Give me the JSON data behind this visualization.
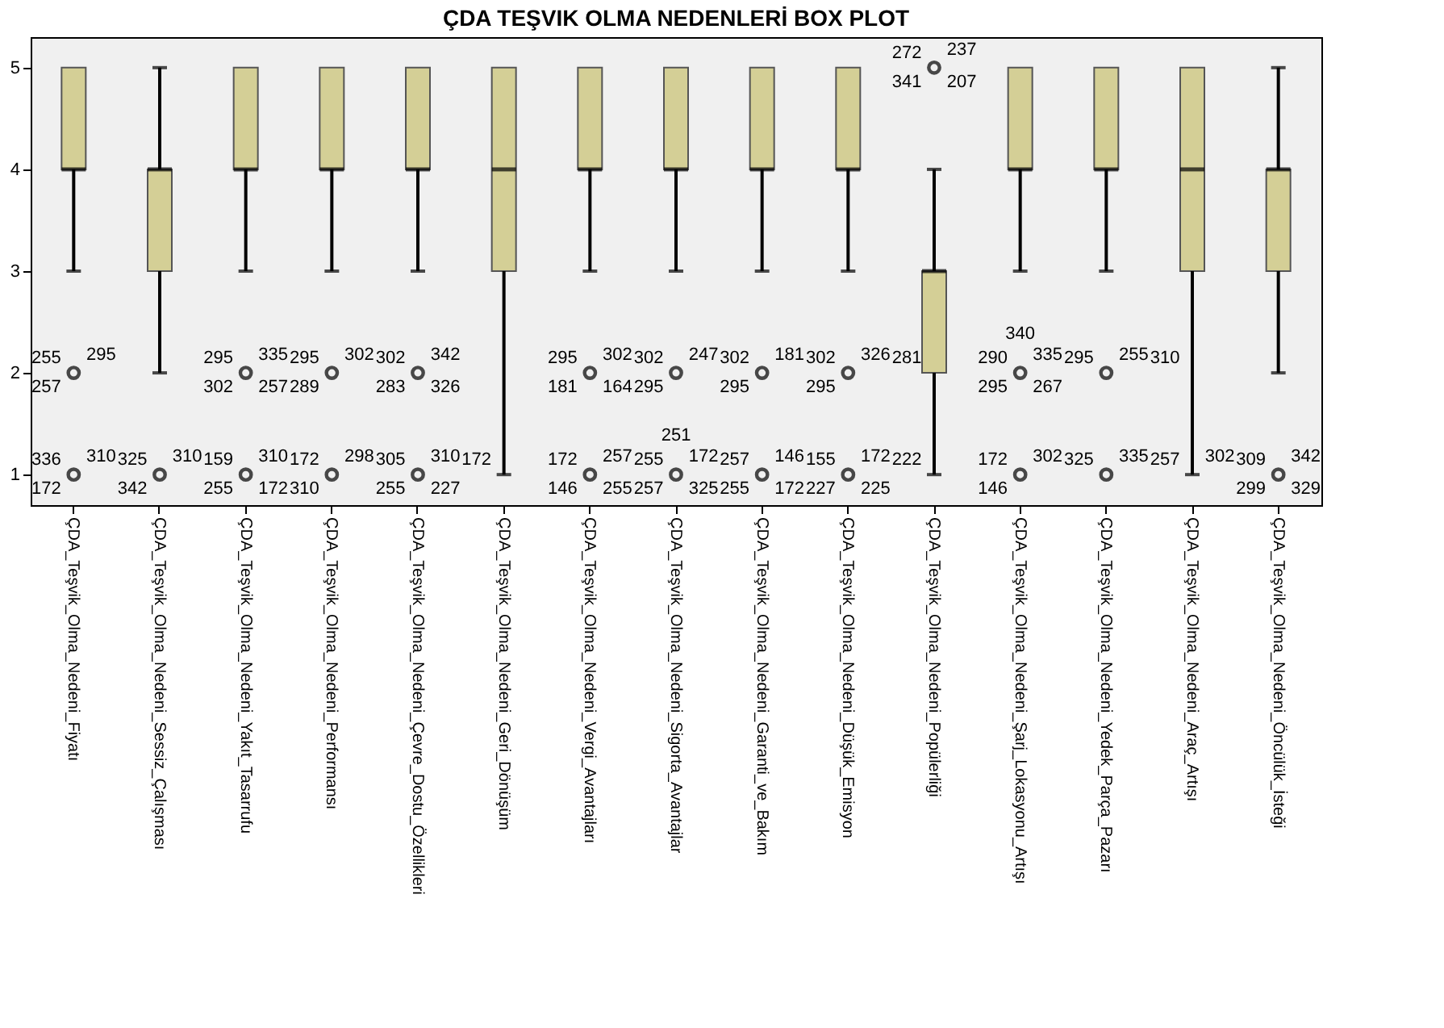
{
  "chart_data": {
    "type": "box",
    "title": "ÇDA TEŞVIK OLMA NEDENLERİ BOX PLOT",
    "color": "#d4cf96",
    "grid": false,
    "ylim": [
      0.7,
      5.3
    ],
    "yticks": [
      1,
      2,
      3,
      4,
      5
    ],
    "categories": [
      "ÇDA_Teşvik_Olma_Nedeni_Fiyatı",
      "ÇDA_Teşvik_Olma_Nedeni_Sessiz_Çalışması",
      "ÇDA_Teşvik_Olma_Nedeni_Yakıt_Tasarrufu",
      "ÇDA_Teşvik_Olma_Nedeni_Performansı",
      "ÇDA_Teşvik_Olma_Nedeni_Çevre_Dostu_Özellikleri",
      "ÇDA_Teşvik_Olma_Nedeni_Geri_Dönüşüm",
      "ÇDA_Teşvik_Olma_Nedeni_Vergi_Avantajları",
      "ÇDA_Teşvik_Olma_Nedeni_Sigorta_Avantajlar",
      "ÇDA_Teşvik_Olma_Nedeni_Garanti_ve_Bakım",
      "ÇDA_Teşvik_Olma_Nedeni_Düşük_Emisyon",
      "ÇDA_Teşvik_Olma_Nedeni_Popülerliği",
      "ÇDA_Teşvik_Olma_Nedeni_Şarj_Lokasyonu_Artışı",
      "ÇDA_Teşvik_Olma_Nedeni_Yedek_Parça_Pazarı",
      "ÇDA_Teşvik_Olma_Nedeni_Araç_Artışı",
      "ÇDA_Teşvik_Olma_Nedeni_Öncülük_İsteği"
    ],
    "boxes": [
      {
        "low": 3,
        "q1": 4,
        "median": 4,
        "q3": 5,
        "high": 5
      },
      {
        "low": 2,
        "q1": 3,
        "median": 4,
        "q3": 4,
        "high": 5
      },
      {
        "low": 3,
        "q1": 4,
        "median": 4,
        "q3": 5,
        "high": 5
      },
      {
        "low": 3,
        "q1": 4,
        "median": 4,
        "q3": 5,
        "high": 5
      },
      {
        "low": 3,
        "q1": 4,
        "median": 4,
        "q3": 5,
        "high": 5
      },
      {
        "low": 1,
        "q1": 3,
        "median": 4,
        "q3": 5,
        "high": 5
      },
      {
        "low": 3,
        "q1": 4,
        "median": 4,
        "q3": 5,
        "high": 5
      },
      {
        "low": 3,
        "q1": 4,
        "median": 4,
        "q3": 5,
        "high": 5
      },
      {
        "low": 3,
        "q1": 4,
        "median": 4,
        "q3": 5,
        "high": 5
      },
      {
        "low": 3,
        "q1": 4,
        "median": 4,
        "q3": 5,
        "high": 5
      },
      {
        "low": 1,
        "q1": 2,
        "median": 3,
        "q3": 3,
        "high": 4
      },
      {
        "low": 3,
        "q1": 4,
        "median": 4,
        "q3": 5,
        "high": 5
      },
      {
        "low": 3,
        "q1": 4,
        "median": 4,
        "q3": 5,
        "high": 5
      },
      {
        "low": 1,
        "q1": 3,
        "median": 4,
        "q3": 5,
        "high": 5
      },
      {
        "low": 2,
        "q1": 3,
        "median": 4,
        "q3": 4,
        "high": 5
      }
    ],
    "series": [
      {
        "type": "scatter",
        "marker": "circle",
        "color": "#000000",
        "x": [
          "ÇDA_Teşvik_Olma_Nedeni_Fiyatı",
          "ÇDA_Teşvik_Olma_Nedeni_Fiyatı",
          "ÇDA_Teşvik_Olma_Nedeni_Sessiz_Çalışması",
          "ÇDA_Teşvik_Olma_Nedeni_Yakıt_Tasarrufu",
          "ÇDA_Teşvik_Olma_Nedeni_Yakıt_Tasarrufu",
          "ÇDA_Teşvik_Olma_Nedeni_Performansı",
          "ÇDA_Teşvik_Olma_Nedeni_Performansı",
          "ÇDA_Teşvik_Olma_Nedeni_Çevre_Dostu_Özellikleri",
          "ÇDA_Teşvik_Olma_Nedeni_Çevre_Dostu_Özellikleri",
          "ÇDA_Teşvik_Olma_Nedeni_Vergi_Avantajları",
          "ÇDA_Teşvik_Olma_Nedeni_Vergi_Avantajları",
          "ÇDA_Teşvik_Olma_Nedeni_Sigorta_Avantajlar",
          "ÇDA_Teşvik_Olma_Nedeni_Sigorta_Avantajlar",
          "ÇDA_Teşvik_Olma_Nedeni_Garanti_ve_Bakım",
          "ÇDA_Teşvik_Olma_Nedeni_Garanti_ve_Bakım",
          "ÇDA_Teşvik_Olma_Nedeni_Düşük_Emisyon",
          "ÇDA_Teşvik_Olma_Nedeni_Düşük_Emisyon",
          "ÇDA_Teşvik_Olma_Nedeni_Popülerliği",
          "ÇDA_Teşvik_Olma_Nedeni_Şarj_Lokasyonu_Artışı",
          "ÇDA_Teşvik_Olma_Nedeni_Şarj_Lokasyonu_Artışı",
          "ÇDA_Teşvik_Olma_Nedeni_Yedek_Parça_Pazarı",
          "ÇDA_Teşvik_Olma_Nedeni_Yedek_Parça_Pazarı",
          "ÇDA_Teşvik_Olma_Nedeni_Öncülük_İsteği"
        ],
        "values": [
          2,
          1,
          1,
          2,
          1,
          2,
          1,
          2,
          1,
          2,
          1,
          2,
          1,
          2,
          1,
          2,
          1,
          5,
          2,
          1,
          2,
          1,
          1
        ]
      }
    ],
    "annotations": [
      {
        "text": "255",
        "x": "ÇDA_Teşvik_Olma_Nedeni_Fiyatı",
        "y": 2
      },
      {
        "text": "295",
        "x": "ÇDA_Teşvik_Olma_Nedeni_Fiyatı",
        "y": 2
      },
      {
        "text": "257",
        "x": "ÇDA_Teşvik_Olma_Nedeni_Fiyatı",
        "y": 2
      },
      {
        "text": "336",
        "x": "ÇDA_Teşvik_Olma_Nedeni_Fiyatı",
        "y": 1
      },
      {
        "text": "310",
        "x": "ÇDA_Teşvik_Olma_Nedeni_Fiyatı",
        "y": 1
      },
      {
        "text": "172",
        "x": "ÇDA_Teşvik_Olma_Nedeni_Fiyatı",
        "y": 1
      },
      {
        "text": "325",
        "x": "ÇDA_Teşvik_Olma_Nedeni_Sessiz_Çalışması",
        "y": 1
      },
      {
        "text": "310",
        "x": "ÇDA_Teşvik_Olma_Nedeni_Sessiz_Çalışması",
        "y": 1
      },
      {
        "text": "342",
        "x": "ÇDA_Teşvik_Olma_Nedeni_Sessiz_Çalışması",
        "y": 1
      },
      {
        "text": "295",
        "x": "ÇDA_Teşvik_Olma_Nedeni_Yakıt_Tasarrufu",
        "y": 2
      },
      {
        "text": "335",
        "x": "ÇDA_Teşvik_Olma_Nedeni_Yakıt_Tasarrufu",
        "y": 2
      },
      {
        "text": "302",
        "x": "ÇDA_Teşvik_Olma_Nedeni_Yakıt_Tasarrufu",
        "y": 2
      },
      {
        "text": "257",
        "x": "ÇDA_Teşvik_Olma_Nedeni_Yakıt_Tasarrufu",
        "y": 2
      },
      {
        "text": "159",
        "x": "ÇDA_Teşvik_Olma_Nedeni_Yakıt_Tasarrufu",
        "y": 1
      },
      {
        "text": "310",
        "x": "ÇDA_Teşvik_Olma_Nedeni_Yakıt_Tasarrufu",
        "y": 1
      },
      {
        "text": "255",
        "x": "ÇDA_Teşvik_Olma_Nedeni_Yakıt_Tasarrufu",
        "y": 1
      },
      {
        "text": "172",
        "x": "ÇDA_Teşvik_Olma_Nedeni_Yakıt_Tasarrufu",
        "y": 1
      },
      {
        "text": "295",
        "x": "ÇDA_Teşvik_Olma_Nedeni_Performansı",
        "y": 2
      },
      {
        "text": "302",
        "x": "ÇDA_Teşvik_Olma_Nedeni_Performansı",
        "y": 2
      },
      {
        "text": "289",
        "x": "ÇDA_Teşvik_Olma_Nedeni_Performansı",
        "y": 2
      },
      {
        "text": "172",
        "x": "ÇDA_Teşvik_Olma_Nedeni_Performansı",
        "y": 1
      },
      {
        "text": "298",
        "x": "ÇDA_Teşvik_Olma_Nedeni_Performansı",
        "y": 1
      },
      {
        "text": "310",
        "x": "ÇDA_Teşvik_Olma_Nedeni_Performansı",
        "y": 1
      },
      {
        "text": "302",
        "x": "ÇDA_Teşvik_Olma_Nedeni_Çevre_Dostu_Özellikleri",
        "y": 2
      },
      {
        "text": "342",
        "x": "ÇDA_Teşvik_Olma_Nedeni_Çevre_Dostu_Özellikleri",
        "y": 2
      },
      {
        "text": "283",
        "x": "ÇDA_Teşvik_Olma_Nedeni_Çevre_Dostu_Özellikleri",
        "y": 2
      },
      {
        "text": "326",
        "x": "ÇDA_Teşvik_Olma_Nedeni_Çevre_Dostu_Özellikleri",
        "y": 2
      },
      {
        "text": "305",
        "x": "ÇDA_Teşvik_Olma_Nedeni_Çevre_Dostu_Özellikleri",
        "y": 1
      },
      {
        "text": "310",
        "x": "ÇDA_Teşvik_Olma_Nedeni_Çevre_Dostu_Özellikleri",
        "y": 1
      },
      {
        "text": "255",
        "x": "ÇDA_Teşvik_Olma_Nedeni_Çevre_Dostu_Özellikleri",
        "y": 1
      },
      {
        "text": "227",
        "x": "ÇDA_Teşvik_Olma_Nedeni_Çevre_Dostu_Özellikleri",
        "y": 1
      },
      {
        "text": "172",
        "x": "ÇDA_Teşvik_Olma_Nedeni_Geri_Dönüşüm",
        "y": 1
      },
      {
        "text": "295",
        "x": "ÇDA_Teşvik_Olma_Nedeni_Vergi_Avantajları",
        "y": 2
      },
      {
        "text": "302",
        "x": "ÇDA_Teşvik_Olma_Nedeni_Vergi_Avantajları",
        "y": 2
      },
      {
        "text": "181",
        "x": "ÇDA_Teşvik_Olma_Nedeni_Vergi_Avantajları",
        "y": 2
      },
      {
        "text": "164",
        "x": "ÇDA_Teşvik_Olma_Nedeni_Vergi_Avantajları",
        "y": 2
      },
      {
        "text": "172",
        "x": "ÇDA_Teşvik_Olma_Nedeni_Vergi_Avantajları",
        "y": 1
      },
      {
        "text": "257",
        "x": "ÇDA_Teşvik_Olma_Nedeni_Vergi_Avantajları",
        "y": 1
      },
      {
        "text": "146",
        "x": "ÇDA_Teşvik_Olma_Nedeni_Vergi_Avantajları",
        "y": 1
      },
      {
        "text": "255",
        "x": "ÇDA_Teşvik_Olma_Nedeni_Vergi_Avantajları",
        "y": 1
      },
      {
        "text": "302",
        "x": "ÇDA_Teşvik_Olma_Nedeni_Sigorta_Avantajlar",
        "y": 2
      },
      {
        "text": "247",
        "x": "ÇDA_Teşvik_Olma_Nedeni_Sigorta_Avantajlar",
        "y": 2
      },
      {
        "text": "295",
        "x": "ÇDA_Teşvik_Olma_Nedeni_Sigorta_Avantajlar",
        "y": 2
      },
      {
        "text": "255",
        "x": "ÇDA_Teşvik_Olma_Nedeni_Sigorta_Avantajlar",
        "y": 1
      },
      {
        "text": "172",
        "x": "ÇDA_Teşvik_Olma_Nedeni_Sigorta_Avantajlar",
        "y": 1
      },
      {
        "text": "257",
        "x": "ÇDA_Teşvik_Olma_Nedeni_Sigorta_Avantajlar",
        "y": 1
      },
      {
        "text": "325",
        "x": "ÇDA_Teşvik_Olma_Nedeni_Sigorta_Avantajlar",
        "y": 1
      },
      {
        "text": "251",
        "x": "ÇDA_Teşvik_Olma_Nedeni_Sigorta_Avantajlar",
        "y": 1
      },
      {
        "text": "302",
        "x": "ÇDA_Teşvik_Olma_Nedeni_Garanti_ve_Bakım",
        "y": 2
      },
      {
        "text": "181",
        "x": "ÇDA_Teşvik_Olma_Nedeni_Garanti_ve_Bakım",
        "y": 2
      },
      {
        "text": "295",
        "x": "ÇDA_Teşvik_Olma_Nedeni_Garanti_ve_Bakım",
        "y": 2
      },
      {
        "text": "257",
        "x": "ÇDA_Teşvik_Olma_Nedeni_Garanti_ve_Bakım",
        "y": 1
      },
      {
        "text": "146",
        "x": "ÇDA_Teşvik_Olma_Nedeni_Garanti_ve_Bakım",
        "y": 1
      },
      {
        "text": "255",
        "x": "ÇDA_Teşvik_Olma_Nedeni_Garanti_ve_Bakım",
        "y": 1
      },
      {
        "text": "172",
        "x": "ÇDA_Teşvik_Olma_Nedeni_Garanti_ve_Bakım",
        "y": 1
      },
      {
        "text": "302",
        "x": "ÇDA_Teşvik_Olma_Nedeni_Düşük_Emisyon",
        "y": 2
      },
      {
        "text": "326",
        "x": "ÇDA_Teşvik_Olma_Nedeni_Düşük_Emisyon",
        "y": 2
      },
      {
        "text": "295",
        "x": "ÇDA_Teşvik_Olma_Nedeni_Düşük_Emisyon",
        "y": 2
      },
      {
        "text": "155",
        "x": "ÇDA_Teşvik_Olma_Nedeni_Düşük_Emisyon",
        "y": 1
      },
      {
        "text": "172",
        "x": "ÇDA_Teşvik_Olma_Nedeni_Düşük_Emisyon",
        "y": 1
      },
      {
        "text": "227",
        "x": "ÇDA_Teşvik_Olma_Nedeni_Düşük_Emisyon",
        "y": 1
      },
      {
        "text": "225",
        "x": "ÇDA_Teşvik_Olma_Nedeni_Düşük_Emisyon",
        "y": 1
      },
      {
        "text": "272",
        "x": "ÇDA_Teşvik_Olma_Nedeni_Popülerliği",
        "y": 5
      },
      {
        "text": "237",
        "x": "ÇDA_Teşvik_Olma_Nedeni_Popülerliği",
        "y": 5
      },
      {
        "text": "341",
        "x": "ÇDA_Teşvik_Olma_Nedeni_Popülerliği",
        "y": 5
      },
      {
        "text": "207",
        "x": "ÇDA_Teşvik_Olma_Nedeni_Popülerliği",
        "y": 5
      },
      {
        "text": "281",
        "x": "ÇDA_Teşvik_Olma_Nedeni_Popülerliği",
        "y": 2
      },
      {
        "text": "222",
        "x": "ÇDA_Teşvik_Olma_Nedeni_Popülerliği",
        "y": 1
      },
      {
        "text": "290",
        "x": "ÇDA_Teşvik_Olma_Nedeni_Şarj_Lokasyonu_Artışı",
        "y": 2
      },
      {
        "text": "335",
        "x": "ÇDA_Teşvik_Olma_Nedeni_Şarj_Lokasyonu_Artışı",
        "y": 2
      },
      {
        "text": "295",
        "x": "ÇDA_Teşvik_Olma_Nedeni_Şarj_Lokasyonu_Artışı",
        "y": 2
      },
      {
        "text": "267",
        "x": "ÇDA_Teşvik_Olma_Nedeni_Şarj_Lokasyonu_Artışı",
        "y": 2
      },
      {
        "text": "340",
        "x": "ÇDA_Teşvik_Olma_Nedeni_Şarj_Lokasyonu_Artışı",
        "y": 2
      },
      {
        "text": "172",
        "x": "ÇDA_Teşvik_Olma_Nedeni_Şarj_Lokasyonu_Artışı",
        "y": 1
      },
      {
        "text": "302",
        "x": "ÇDA_Teşvik_Olma_Nedeni_Şarj_Lokasyonu_Artışı",
        "y": 1
      },
      {
        "text": "146",
        "x": "ÇDA_Teşvik_Olma_Nedeni_Şarj_Lokasyonu_Artışı",
        "y": 1
      },
      {
        "text": "295",
        "x": "ÇDA_Teşvik_Olma_Nedeni_Yedek_Parça_Pazarı",
        "y": 2
      },
      {
        "text": "255",
        "x": "ÇDA_Teşvik_Olma_Nedeni_Yedek_Parça_Pazarı",
        "y": 2
      },
      {
        "text": "325",
        "x": "ÇDA_Teşvik_Olma_Nedeni_Yedek_Parça_Pazarı",
        "y": 1
      },
      {
        "text": "335",
        "x": "ÇDA_Teşvik_Olma_Nedeni_Yedek_Parça_Pazarı",
        "y": 1
      },
      {
        "text": "310",
        "x": "ÇDA_Teşvik_Olma_Nedeni_Araç_Artışı",
        "y": 2
      },
      {
        "text": "257",
        "x": "ÇDA_Teşvik_Olma_Nedeni_Araç_Artışı",
        "y": 1
      },
      {
        "text": "302",
        "x": "ÇDA_Teşvik_Olma_Nedeni_Araç_Artışı",
        "y": 1
      },
      {
        "text": "309",
        "x": "ÇDA_Teşvik_Olma_Nedeni_Öncülük_İsteği",
        "y": 1
      },
      {
        "text": "342",
        "x": "ÇDA_Teşvik_Olma_Nedeni_Öncülük_İsteği",
        "y": 1
      },
      {
        "text": "299",
        "x": "ÇDA_Teşvik_Olma_Nedeni_Öncülük_İsteği",
        "y": 1
      },
      {
        "text": "329",
        "x": "ÇDA_Teşvik_Olma_Nedeni_Öncülük_İsteği",
        "y": 1
      }
    ]
  }
}
